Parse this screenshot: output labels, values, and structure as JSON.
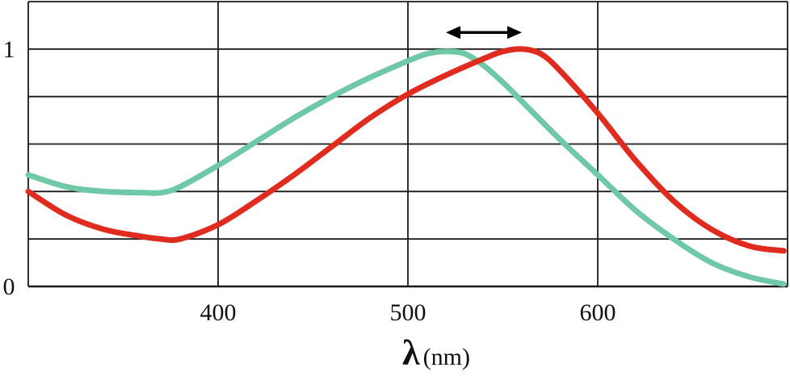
{
  "chart_data": {
    "type": "line",
    "title": "",
    "xlabel": "λ",
    "xlabel_unit": "(nm)",
    "ylabel": "",
    "xlim": [
      300,
      700
    ],
    "ylim": [
      0,
      1.2
    ],
    "x_ticks": [
      {
        "value": 400,
        "label": "400"
      },
      {
        "value": 500,
        "label": "500"
      },
      {
        "value": 600,
        "label": "600"
      }
    ],
    "y_ticks": [
      {
        "value": 0,
        "label": "0"
      },
      {
        "value": 1,
        "label": "1"
      }
    ],
    "x_gridlines": [
      300,
      400,
      500,
      600,
      700
    ],
    "y_gridlines": [
      0,
      0.2,
      0.4,
      0.6,
      0.8,
      1.0,
      1.2
    ],
    "grid": true,
    "legend": "none",
    "series": [
      {
        "color": "#6fc8a6",
        "x": [
          300,
          320,
          340,
          360,
          370,
          380,
          400,
          420,
          440,
          460,
          480,
          500,
          510,
          520,
          530,
          540,
          550,
          560,
          580,
          600,
          620,
          640,
          660,
          680,
          698
        ],
        "y": [
          0.47,
          0.42,
          0.4,
          0.395,
          0.395,
          0.42,
          0.51,
          0.61,
          0.71,
          0.8,
          0.88,
          0.95,
          0.98,
          0.99,
          0.98,
          0.93,
          0.86,
          0.78,
          0.62,
          0.47,
          0.32,
          0.2,
          0.1,
          0.04,
          0.01
        ]
      },
      {
        "color": "#e02b1f",
        "x": [
          300,
          320,
          340,
          360,
          370,
          380,
          400,
          420,
          440,
          460,
          480,
          500,
          520,
          540,
          550,
          560,
          570,
          580,
          600,
          620,
          640,
          660,
          680,
          698
        ],
        "y": [
          0.4,
          0.3,
          0.24,
          0.21,
          0.2,
          0.2,
          0.26,
          0.36,
          0.47,
          0.59,
          0.71,
          0.81,
          0.89,
          0.96,
          0.99,
          1.0,
          0.98,
          0.91,
          0.73,
          0.53,
          0.36,
          0.24,
          0.17,
          0.15
        ]
      }
    ],
    "annotation": {
      "type": "double-arrow",
      "color": "#000000",
      "x_from": 520,
      "x_to": 560,
      "y": 1.07
    }
  }
}
